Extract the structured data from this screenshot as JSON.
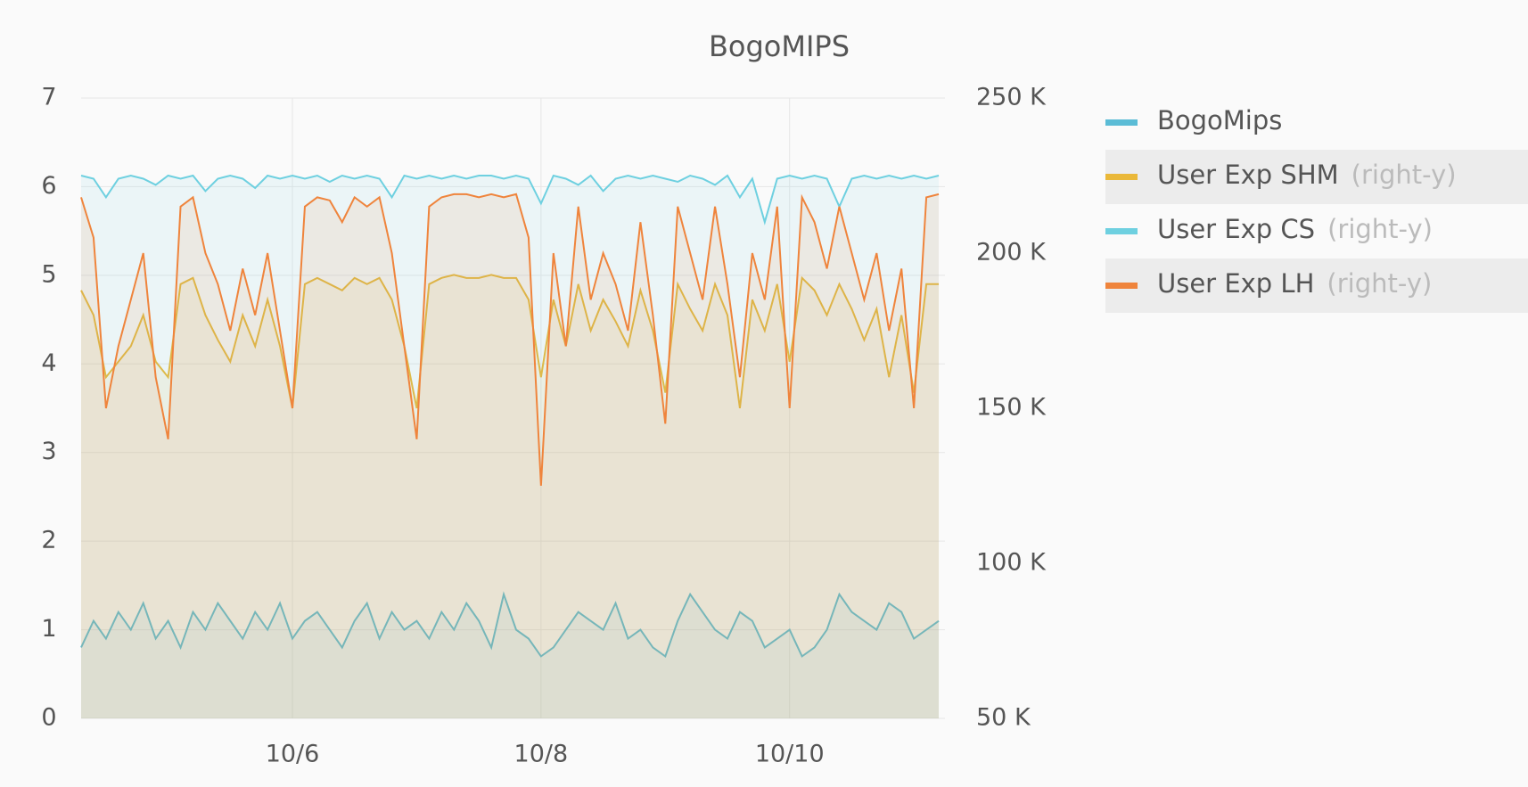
{
  "chart_data": {
    "type": "line",
    "title": "BogoMIPS",
    "legend_suffix": "(right-y)",
    "x": [
      4.3,
      4.4,
      4.5,
      4.6,
      4.7,
      4.8,
      4.9,
      5.0,
      5.1,
      5.2,
      5.3,
      5.4,
      5.5,
      5.6,
      5.7,
      5.8,
      5.9,
      6.0,
      6.1,
      6.2,
      6.3,
      6.4,
      6.5,
      6.6,
      6.7,
      6.8,
      6.9,
      7.0,
      7.1,
      7.2,
      7.3,
      7.4,
      7.5,
      7.6,
      7.7,
      7.8,
      7.9,
      8.0,
      8.1,
      8.2,
      8.3,
      8.4,
      8.5,
      8.6,
      8.7,
      8.8,
      8.9,
      9.0,
      9.1,
      9.2,
      9.3,
      9.4,
      9.5,
      9.6,
      9.7,
      9.8,
      9.9,
      10.0,
      10.1,
      10.2,
      10.3,
      10.4,
      10.5,
      10.6,
      10.7,
      10.8,
      10.9,
      11.0,
      11.1,
      11.2
    ],
    "xlim": [
      4.3,
      11.25
    ],
    "xticks": [
      {
        "value": 6,
        "label": "10/6"
      },
      {
        "value": 8,
        "label": "10/8"
      },
      {
        "value": 10,
        "label": "10/10"
      }
    ],
    "ylim": [
      0,
      7
    ],
    "yticks": [
      0,
      1,
      2,
      3,
      4,
      5,
      6,
      7
    ],
    "y2lim": [
      50000,
      250000
    ],
    "y2ticks": [
      {
        "value": 50000,
        "label": "50 K"
      },
      {
        "value": 100000,
        "label": "100 K"
      },
      {
        "value": 150000,
        "label": "150 K"
      },
      {
        "value": 200000,
        "label": "200 K"
      },
      {
        "value": 250000,
        "label": "250 K"
      }
    ],
    "grid": true,
    "series": [
      {
        "name": "BogoMips",
        "color": "#5bbcd6",
        "values": [
          0.8,
          1.1,
          0.9,
          1.2,
          1.0,
          1.3,
          0.9,
          1.1,
          0.8,
          1.2,
          1.0,
          1.3,
          1.1,
          0.9,
          1.2,
          1.0,
          1.3,
          0.9,
          1.1,
          1.2,
          1.0,
          0.8,
          1.1,
          1.3,
          0.9,
          1.2,
          1.0,
          1.1,
          0.9,
          1.2,
          1.0,
          1.3,
          1.1,
          0.8,
          1.4,
          1.0,
          0.9,
          0.7,
          0.8,
          1.0,
          1.2,
          1.1,
          1.0,
          1.3,
          0.9,
          1.0,
          0.8,
          0.7,
          1.1,
          1.4,
          1.2,
          1.0,
          0.9,
          1.2,
          1.1,
          0.8,
          0.9,
          1.0,
          0.7,
          0.8,
          1.0,
          1.4,
          1.2,
          1.1,
          1.0,
          1.3,
          1.2,
          0.9,
          1.0,
          1.1
        ]
      },
      {
        "name": "User Exp SHM",
        "color": "#eab839",
        "axis": "y2",
        "values": [
          188000,
          180000,
          160000,
          165000,
          170000,
          180000,
          165000,
          160000,
          190000,
          192000,
          180000,
          172000,
          165000,
          180000,
          170000,
          185000,
          170000,
          150000,
          190000,
          192000,
          190000,
          188000,
          192000,
          190000,
          192000,
          185000,
          170000,
          150000,
          190000,
          192000,
          193000,
          192000,
          192000,
          193000,
          192000,
          192000,
          185000,
          160000,
          185000,
          170000,
          190000,
          175000,
          185000,
          178000,
          170000,
          188000,
          175000,
          155000,
          190000,
          182000,
          175000,
          190000,
          180000,
          150000,
          185000,
          175000,
          190000,
          165000,
          192000,
          188000,
          180000,
          190000,
          182000,
          172000,
          182000,
          160000,
          180000,
          155000,
          190000,
          190000
        ]
      },
      {
        "name": "User Exp CS",
        "color": "#6ed0e0",
        "axis": "y2",
        "values": [
          225000,
          224000,
          218000,
          224000,
          225000,
          224000,
          222000,
          225000,
          224000,
          225000,
          220000,
          224000,
          225000,
          224000,
          221000,
          225000,
          224000,
          225000,
          224000,
          225000,
          223000,
          225000,
          224000,
          225000,
          224000,
          218000,
          225000,
          224000,
          225000,
          224000,
          225000,
          224000,
          225000,
          225000,
          224000,
          225000,
          224000,
          216000,
          225000,
          224000,
          222000,
          225000,
          220000,
          224000,
          225000,
          224000,
          225000,
          224000,
          223000,
          225000,
          224000,
          222000,
          225000,
          218000,
          224000,
          210000,
          224000,
          225000,
          224000,
          225000,
          224000,
          215000,
          224000,
          225000,
          224000,
          225000,
          224000,
          225000,
          224000,
          225000
        ]
      },
      {
        "name": "User Exp LH",
        "color": "#ef843c",
        "axis": "y2",
        "values": [
          218000,
          205000,
          150000,
          170000,
          185000,
          200000,
          160000,
          140000,
          215000,
          218000,
          200000,
          190000,
          175000,
          195000,
          180000,
          200000,
          175000,
          150000,
          215000,
          218000,
          217000,
          210000,
          218000,
          215000,
          218000,
          200000,
          170000,
          140000,
          215000,
          218000,
          219000,
          219000,
          218000,
          219000,
          218000,
          219000,
          205000,
          125000,
          200000,
          170000,
          215000,
          185000,
          200000,
          190000,
          175000,
          210000,
          180000,
          145000,
          215000,
          200000,
          185000,
          215000,
          190000,
          160000,
          200000,
          185000,
          215000,
          150000,
          218000,
          210000,
          195000,
          215000,
          200000,
          185000,
          200000,
          175000,
          195000,
          150000,
          218000,
          219000
        ]
      }
    ]
  }
}
